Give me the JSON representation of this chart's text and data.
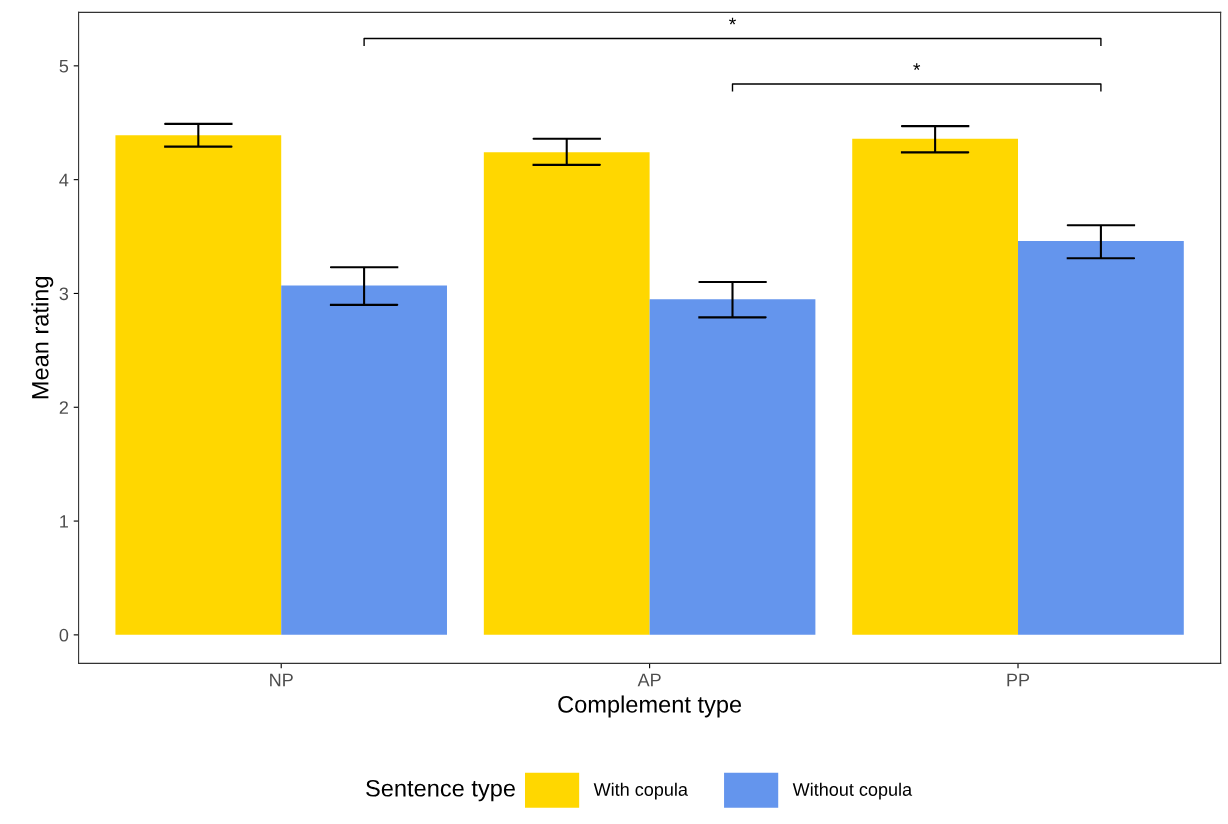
{
  "chart_data": {
    "type": "bar",
    "xlabel": "Complement type",
    "ylabel": "Mean rating",
    "legend_title": "Sentence type",
    "categories": [
      "NP",
      "AP",
      "PP"
    ],
    "series": [
      {
        "name": "With copula",
        "color": "#ffd700",
        "values": [
          4.39,
          4.24,
          4.36
        ],
        "errors": [
          [
            4.29,
            4.49
          ],
          [
            4.13,
            4.36
          ],
          [
            4.24,
            4.47
          ]
        ]
      },
      {
        "name": "Without copula",
        "color": "#6495ed",
        "values": [
          3.07,
          2.95,
          3.46
        ],
        "errors": [
          [
            2.9,
            3.23
          ],
          [
            2.79,
            3.1
          ],
          [
            3.31,
            3.6
          ]
        ]
      }
    ],
    "ylim": [
      -0.25,
      5.47
    ],
    "yticks": [
      0,
      1,
      2,
      3,
      4,
      5
    ],
    "grid": false,
    "legend": "bottom",
    "annotations": [
      "*",
      "*"
    ]
  }
}
